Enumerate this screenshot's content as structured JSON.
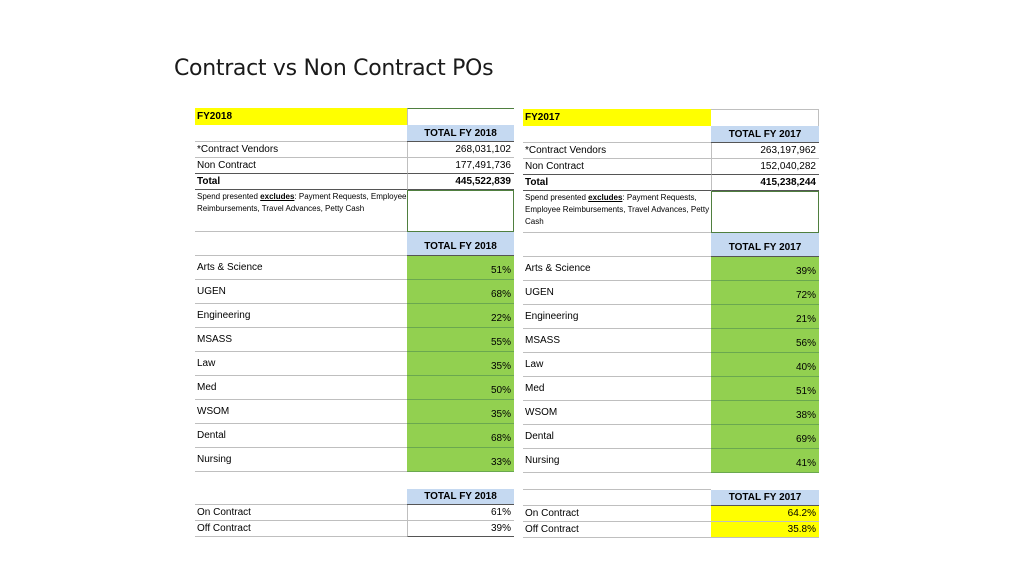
{
  "title": "Contract vs Non Contract POs",
  "fy2018": {
    "label": "FY2018",
    "total_header": "TOTAL FY 2018",
    "contract_vendors": {
      "label": "*Contract Vendors",
      "value": "268,031,102"
    },
    "non_contract": {
      "label": "Non Contract",
      "value": "177,491,736"
    },
    "total": {
      "label": "Total",
      "value": "445,522,839"
    },
    "note_pre": "Spend presented ",
    "note_bold": "excludes",
    "note_post": ":  Payment Requests, Employee Reimbursements, Travel Advances, Petty Cash",
    "schools_header": "TOTAL FY 2018",
    "schools": [
      {
        "name": "Arts & Science",
        "pct": "51%"
      },
      {
        "name": "UGEN",
        "pct": "68%"
      },
      {
        "name": "Engineering",
        "pct": "22%"
      },
      {
        "name": "MSASS",
        "pct": "55%"
      },
      {
        "name": "Law",
        "pct": "35%"
      },
      {
        "name": "Med",
        "pct": "50%"
      },
      {
        "name": "WSOM",
        "pct": "35%"
      },
      {
        "name": "Dental",
        "pct": "68%"
      },
      {
        "name": "Nursing",
        "pct": "33%"
      }
    ],
    "summary_header": "TOTAL FY 2018",
    "on_contract": {
      "label": "On Contract",
      "value": "61%"
    },
    "off_contract": {
      "label": "Off Contract",
      "value": "39%"
    }
  },
  "fy2017": {
    "label": "FY2017",
    "total_header": "TOTAL FY 2017",
    "contract_vendors": {
      "label": "*Contract Vendors",
      "value": "263,197,962"
    },
    "non_contract": {
      "label": "Non Contract",
      "value": "152,040,282"
    },
    "total": {
      "label": "Total",
      "value": "415,238,244"
    },
    "note_pre": "Spend presented ",
    "note_bold": "excludes",
    "note_post": ":  Payment Requests, Employee Reimbursements, Travel Advances, Petty Cash",
    "schools_header": "TOTAL FY 2017",
    "schools": [
      {
        "name": "Arts & Science",
        "pct": "39%"
      },
      {
        "name": "UGEN",
        "pct": "72%"
      },
      {
        "name": "Engineering",
        "pct": "21%"
      },
      {
        "name": "MSASS",
        "pct": "56%"
      },
      {
        "name": "Law",
        "pct": "40%"
      },
      {
        "name": "Med",
        "pct": "51%"
      },
      {
        "name": "WSOM",
        "pct": "38%"
      },
      {
        "name": "Dental",
        "pct": "69%"
      },
      {
        "name": "Nursing",
        "pct": "41%"
      }
    ],
    "summary_header": "TOTAL FY 2017",
    "on_contract": {
      "label": "On Contract",
      "value": "64.2%"
    },
    "off_contract": {
      "label": "Off Contract",
      "value": "35.8%"
    }
  }
}
